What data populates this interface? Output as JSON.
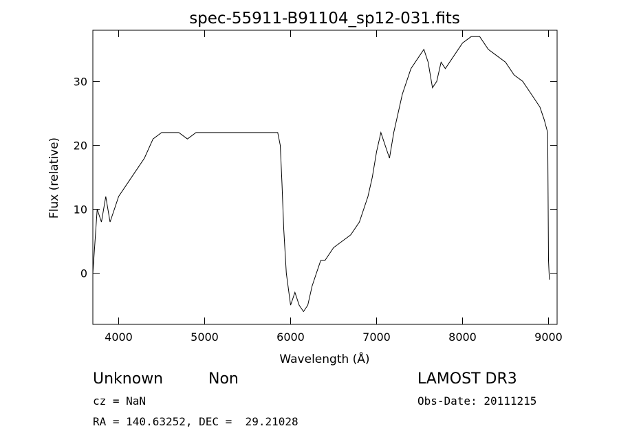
{
  "chart_data": {
    "type": "line",
    "title": "spec-55911-B91104_sp12-031.fits",
    "xlabel": "Wavelength (Å)",
    "ylabel": "Flux (relative)",
    "xlim": [
      3700,
      9100
    ],
    "ylim": [
      -8,
      38
    ],
    "grid": false,
    "legend": "none",
    "x_ticks": [
      4000,
      5000,
      6000,
      7000,
      8000,
      9000
    ],
    "y_ticks": [
      0,
      10,
      20,
      30
    ],
    "x_tick_labels": [
      "4000",
      "5000",
      "6000",
      "7000",
      "8000",
      "9000"
    ],
    "y_tick_labels": [
      "0",
      "10",
      "20",
      "30"
    ],
    "series": [
      {
        "color": "#000000",
        "x": [
          3700,
          3750,
          3800,
          3850,
          3900,
          3950,
          4000,
          4100,
          4200,
          4300,
          4400,
          4500,
          4600,
          4700,
          4800,
          4900,
          5000,
          5100,
          5200,
          5300,
          5400,
          5500,
          5600,
          5700,
          5800,
          5850,
          5880,
          5900,
          5920,
          5950,
          6000,
          6050,
          6100,
          6150,
          6200,
          6250,
          6300,
          6350,
          6400,
          6500,
          6600,
          6700,
          6800,
          6900,
          6950,
          7000,
          7050,
          7100,
          7150,
          7200,
          7300,
          7400,
          7500,
          7550,
          7600,
          7650,
          7700,
          7750,
          7800,
          7900,
          8000,
          8100,
          8200,
          8300,
          8400,
          8500,
          8600,
          8700,
          8800,
          8900,
          8950,
          8990,
          9000,
          9010
        ],
        "y": [
          0,
          10,
          8,
          12,
          8,
          10,
          12,
          14,
          16,
          18,
          21,
          22,
          22,
          22,
          21,
          22,
          22,
          22,
          22,
          22,
          22,
          22,
          22,
          22,
          22,
          22,
          20,
          14,
          7,
          0,
          -5,
          -3,
          -5,
          -6,
          -5,
          -2,
          0,
          2,
          2,
          4,
          5,
          6,
          8,
          12,
          15,
          19,
          22,
          20,
          18,
          22,
          28,
          32,
          34,
          35,
          33,
          29,
          30,
          33,
          32,
          34,
          36,
          37,
          37,
          35,
          34,
          33,
          31,
          30,
          28,
          26,
          24,
          22,
          2,
          -1
        ]
      }
    ]
  },
  "footer": {
    "object_type": "Unknown",
    "subclass": "Non",
    "cz": "cz = NaN",
    "coords": "RA = 140.63252, DEC =  29.21028",
    "survey": "LAMOST DR3",
    "obs_date": "Obs-Date: 20111215"
  }
}
